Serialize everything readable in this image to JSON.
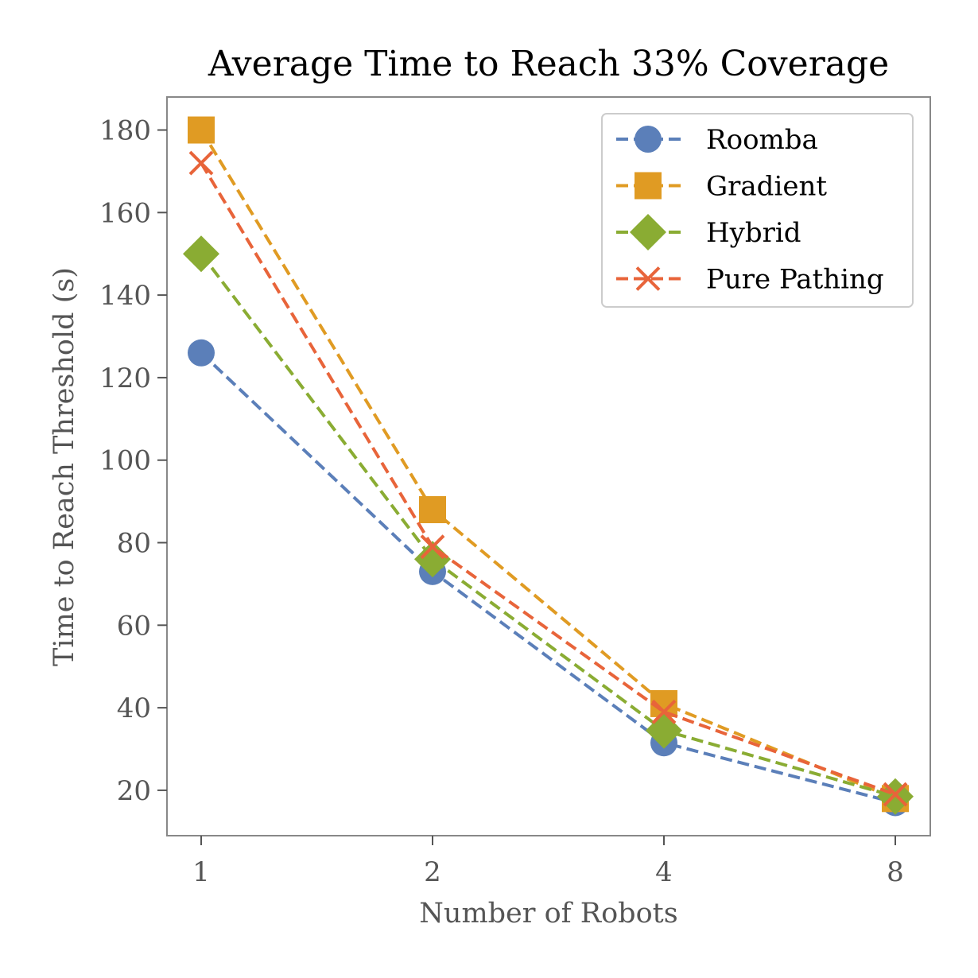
{
  "chart_data": {
    "type": "line",
    "title": "Average Time to Reach 33% Coverage",
    "xlabel": "Number of Robots",
    "ylabel": "Time to Reach Threshold (s)",
    "x": [
      1,
      2,
      4,
      8
    ],
    "x_scale": "log2",
    "xticks": [
      "1",
      "2",
      "4",
      "8"
    ],
    "yticks": [
      "20",
      "40",
      "60",
      "80",
      "100",
      "120",
      "140",
      "160",
      "180"
    ],
    "ylim": [
      9,
      188
    ],
    "grid": false,
    "legend_position": "top-right",
    "series": [
      {
        "name": "Roomba",
        "marker": "circle",
        "color": "#5b7fb9",
        "values": [
          126,
          73,
          31.5,
          17
        ]
      },
      {
        "name": "Gradient",
        "marker": "square",
        "color": "#e09b23",
        "values": [
          180,
          88,
          41,
          18
        ]
      },
      {
        "name": "Hybrid",
        "marker": "diamond",
        "color": "#8aac33",
        "values": [
          150,
          76,
          34.5,
          18.5
        ]
      },
      {
        "name": "Pure Pathing",
        "marker": "x",
        "color": "#e8643a",
        "values": [
          172,
          79,
          39,
          19
        ]
      }
    ]
  }
}
